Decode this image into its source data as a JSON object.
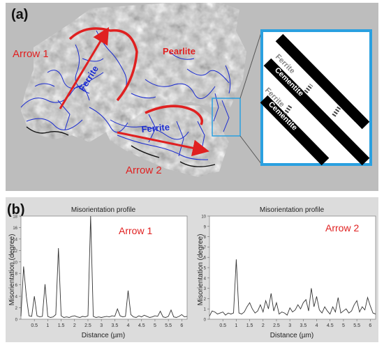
{
  "figure": {
    "panel_a": {
      "label": "(a)",
      "annotations": {
        "arrow1": "Arrow 1",
        "arrow2": "Arrow 2",
        "ferrite_upper": "Ferrite",
        "ferrite_lower": "Ferrite",
        "pearlite": "Pearlite"
      },
      "inset": {
        "labels": [
          "Cementite",
          "Ferrite",
          "Cementite",
          "Ferrite",
          "Cementite"
        ]
      },
      "colors": {
        "annotation": "#e02020",
        "grain_boundary": "#1a2bd0",
        "inset_frame": "#2aa0e0"
      }
    },
    "panel_b": {
      "label": "(b)"
    }
  },
  "chart_data": [
    {
      "type": "line",
      "title": "Misorientation profile",
      "annotation": "Arrow 1",
      "xlabel": "Distance (µm)",
      "ylabel": "Misorientation (degree)",
      "xlim": [
        0,
        6.2
      ],
      "ylim": [
        0,
        18
      ],
      "xticks": [
        "0.5",
        "1",
        "1.5",
        "2",
        "2.5",
        "3",
        "3.5",
        "4",
        "4.5",
        "5",
        "5.5",
        "6"
      ],
      "yticks": [
        "0",
        "2",
        "4",
        "6",
        "8",
        "10",
        "12",
        "14",
        "16",
        "18"
      ],
      "x": [
        0.0,
        0.1,
        0.2,
        0.3,
        0.4,
        0.5,
        0.6,
        0.7,
        0.8,
        0.9,
        1.0,
        1.1,
        1.2,
        1.3,
        1.4,
        1.5,
        1.6,
        1.7,
        1.8,
        1.9,
        2.0,
        2.1,
        2.2,
        2.3,
        2.4,
        2.5,
        2.6,
        2.7,
        2.8,
        2.9,
        3.0,
        3.1,
        3.2,
        3.3,
        3.4,
        3.5,
        3.6,
        3.7,
        3.8,
        3.9,
        4.0,
        4.1,
        4.2,
        4.3,
        4.4,
        4.5,
        4.6,
        4.7,
        4.8,
        4.9,
        5.0,
        5.1,
        5.2,
        5.3,
        5.4,
        5.5,
        5.6,
        5.7,
        5.8,
        5.9,
        6.0,
        6.1,
        6.2
      ],
      "y": [
        0.5,
        9.2,
        4.0,
        0.6,
        0.5,
        4.0,
        0.6,
        0.4,
        0.5,
        6.1,
        0.5,
        0.3,
        0.4,
        0.8,
        12.4,
        0.6,
        0.3,
        0.4,
        0.3,
        0.5,
        0.6,
        0.4,
        0.3,
        0.5,
        0.4,
        0.6,
        18.0,
        0.5,
        0.3,
        0.4,
        0.3,
        0.4,
        0.5,
        0.4,
        0.6,
        0.5,
        1.8,
        0.6,
        0.4,
        0.5,
        5.0,
        0.8,
        0.4,
        0.3,
        0.6,
        0.4,
        0.7,
        0.5,
        0.3,
        0.4,
        0.6,
        0.5,
        1.4,
        0.4,
        0.3,
        0.5,
        1.6,
        0.4,
        0.3,
        0.5,
        0.8,
        0.4,
        0.5
      ]
    },
    {
      "type": "line",
      "title": "Misorientation profile",
      "annotation": "Arrow 2",
      "xlabel": "Distance (µm)",
      "ylabel": "Misorientation (degree)",
      "xlim": [
        0,
        6.2
      ],
      "ylim": [
        0,
        10
      ],
      "xticks": [
        "0.5",
        "1",
        "1.5",
        "2",
        "2.5",
        "3",
        "3.5",
        "4",
        "4.5",
        "5",
        "5.5",
        "6"
      ],
      "yticks": [
        "0",
        "1",
        "2",
        "3",
        "4",
        "5",
        "6",
        "7",
        "8",
        "9",
        "10"
      ],
      "x": [
        0.0,
        0.1,
        0.2,
        0.3,
        0.4,
        0.5,
        0.6,
        0.7,
        0.8,
        0.9,
        1.0,
        1.1,
        1.2,
        1.3,
        1.4,
        1.5,
        1.6,
        1.7,
        1.8,
        1.9,
        2.0,
        2.1,
        2.2,
        2.3,
        2.4,
        2.5,
        2.6,
        2.7,
        2.8,
        2.9,
        3.0,
        3.1,
        3.2,
        3.3,
        3.4,
        3.5,
        3.6,
        3.7,
        3.8,
        3.9,
        4.0,
        4.1,
        4.2,
        4.3,
        4.4,
        4.5,
        4.6,
        4.7,
        4.8,
        4.9,
        5.0,
        5.1,
        5.2,
        5.3,
        5.4,
        5.5,
        5.6,
        5.7,
        5.8,
        5.9,
        6.0,
        6.1,
        6.2
      ],
      "y": [
        0.3,
        0.8,
        0.7,
        0.5,
        0.6,
        0.7,
        0.4,
        0.6,
        0.5,
        0.6,
        5.8,
        0.6,
        0.5,
        0.7,
        1.2,
        1.6,
        1.0,
        0.6,
        0.8,
        1.4,
        0.7,
        1.8,
        1.0,
        2.5,
        0.8,
        1.6,
        0.5,
        0.7,
        0.6,
        0.4,
        1.1,
        0.7,
        0.9,
        1.4,
        1.0,
        1.6,
        1.9,
        0.8,
        3.0,
        1.2,
        2.2,
        0.9,
        0.6,
        1.2,
        0.8,
        0.5,
        1.2,
        0.7,
        2.1,
        0.6,
        0.8,
        1.0,
        0.6,
        0.8,
        1.4,
        1.8,
        0.7,
        1.2,
        0.9,
        2.1,
        1.3,
        0.6,
        0.5
      ]
    }
  ]
}
